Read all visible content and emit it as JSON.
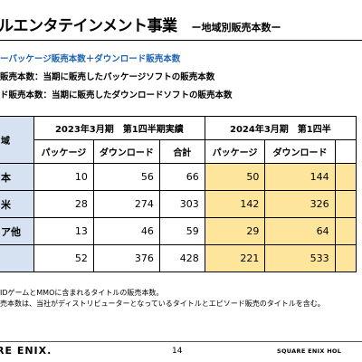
{
  "header": {
    "title": "ルエンタテインメント事業",
    "subtitle": "ー地域別販売本数ー"
  },
  "notes": [
    {
      "text": "ーパッケージ販売本数＋ダウンロード販売本数",
      "accent": true
    },
    {
      "text": "販売本数：当期に販売したパッケージソフトの販売本数",
      "accent": false
    },
    {
      "text": "ド販売本数：当期に販売したダウンロードソフトの販売本数",
      "accent": false
    }
  ],
  "table": {
    "region_header": "域",
    "group_2023": "2023年3月期　第1四半期実績",
    "group_2024": "2024年3月期　第1四半",
    "sub_headers": [
      "パッケージ",
      "ダウンロード",
      "合計",
      "パッケージ",
      "ダウンロード",
      ""
    ],
    "rows": [
      {
        "region": "本",
        "values": [
          "10",
          "56",
          "66",
          "50",
          "144",
          ""
        ]
      },
      {
        "region": "米",
        "values": [
          "28",
          "274",
          "303",
          "142",
          "326",
          ""
        ]
      },
      {
        "region": "ア他",
        "values": [
          "13",
          "46",
          "59",
          "29",
          "64",
          ""
        ]
      },
      {
        "region": "",
        "values": [
          "52",
          "376",
          "428",
          "221",
          "533",
          ""
        ]
      }
    ]
  },
  "footnotes": [
    "IDゲームとMMOに含まれるタイトルの販売本数。",
    "売本数は、当社がディストリビューターとなっているタイトルとエピソード販売のタイトルを含む。"
  ],
  "footer": {
    "logo": "RE ENIX.",
    "page_number": "14",
    "company": "SQUARE ENIX HOL"
  },
  "colors": {
    "accent_blue": "#1d63b3",
    "region_fill": "#d6e2f1",
    "highlight_fill": "#fde59b"
  }
}
